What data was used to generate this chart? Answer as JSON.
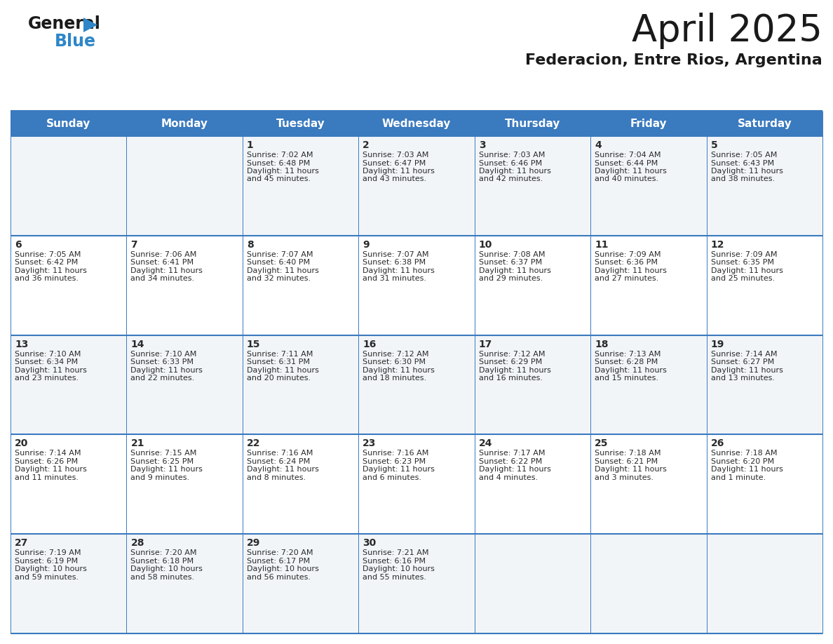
{
  "title": "April 2025",
  "subtitle": "Federacion, Entre Rios, Argentina",
  "header_bg_color": "#3a7abf",
  "header_text_color": "#ffffff",
  "row_bg_odd": "#f2f5f8",
  "row_bg_even": "#ffffff",
  "grid_line_color": "#3a7abf",
  "separator_color": "#3a7abf",
  "day_names": [
    "Sunday",
    "Monday",
    "Tuesday",
    "Wednesday",
    "Thursday",
    "Friday",
    "Saturday"
  ],
  "days": [
    {
      "day": 1,
      "col": 2,
      "row": 0,
      "sunrise": "7:02 AM",
      "sunset": "6:48 PM",
      "daylight": "11 hours and 45 minutes."
    },
    {
      "day": 2,
      "col": 3,
      "row": 0,
      "sunrise": "7:03 AM",
      "sunset": "6:47 PM",
      "daylight": "11 hours and 43 minutes."
    },
    {
      "day": 3,
      "col": 4,
      "row": 0,
      "sunrise": "7:03 AM",
      "sunset": "6:46 PM",
      "daylight": "11 hours and 42 minutes."
    },
    {
      "day": 4,
      "col": 5,
      "row": 0,
      "sunrise": "7:04 AM",
      "sunset": "6:44 PM",
      "daylight": "11 hours and 40 minutes."
    },
    {
      "day": 5,
      "col": 6,
      "row": 0,
      "sunrise": "7:05 AM",
      "sunset": "6:43 PM",
      "daylight": "11 hours and 38 minutes."
    },
    {
      "day": 6,
      "col": 0,
      "row": 1,
      "sunrise": "7:05 AM",
      "sunset": "6:42 PM",
      "daylight": "11 hours and 36 minutes."
    },
    {
      "day": 7,
      "col": 1,
      "row": 1,
      "sunrise": "7:06 AM",
      "sunset": "6:41 PM",
      "daylight": "11 hours and 34 minutes."
    },
    {
      "day": 8,
      "col": 2,
      "row": 1,
      "sunrise": "7:07 AM",
      "sunset": "6:40 PM",
      "daylight": "11 hours and 32 minutes."
    },
    {
      "day": 9,
      "col": 3,
      "row": 1,
      "sunrise": "7:07 AM",
      "sunset": "6:38 PM",
      "daylight": "11 hours and 31 minutes."
    },
    {
      "day": 10,
      "col": 4,
      "row": 1,
      "sunrise": "7:08 AM",
      "sunset": "6:37 PM",
      "daylight": "11 hours and 29 minutes."
    },
    {
      "day": 11,
      "col": 5,
      "row": 1,
      "sunrise": "7:09 AM",
      "sunset": "6:36 PM",
      "daylight": "11 hours and 27 minutes."
    },
    {
      "day": 12,
      "col": 6,
      "row": 1,
      "sunrise": "7:09 AM",
      "sunset": "6:35 PM",
      "daylight": "11 hours and 25 minutes."
    },
    {
      "day": 13,
      "col": 0,
      "row": 2,
      "sunrise": "7:10 AM",
      "sunset": "6:34 PM",
      "daylight": "11 hours and 23 minutes."
    },
    {
      "day": 14,
      "col": 1,
      "row": 2,
      "sunrise": "7:10 AM",
      "sunset": "6:33 PM",
      "daylight": "11 hours and 22 minutes."
    },
    {
      "day": 15,
      "col": 2,
      "row": 2,
      "sunrise": "7:11 AM",
      "sunset": "6:31 PM",
      "daylight": "11 hours and 20 minutes."
    },
    {
      "day": 16,
      "col": 3,
      "row": 2,
      "sunrise": "7:12 AM",
      "sunset": "6:30 PM",
      "daylight": "11 hours and 18 minutes."
    },
    {
      "day": 17,
      "col": 4,
      "row": 2,
      "sunrise": "7:12 AM",
      "sunset": "6:29 PM",
      "daylight": "11 hours and 16 minutes."
    },
    {
      "day": 18,
      "col": 5,
      "row": 2,
      "sunrise": "7:13 AM",
      "sunset": "6:28 PM",
      "daylight": "11 hours and 15 minutes."
    },
    {
      "day": 19,
      "col": 6,
      "row": 2,
      "sunrise": "7:14 AM",
      "sunset": "6:27 PM",
      "daylight": "11 hours and 13 minutes."
    },
    {
      "day": 20,
      "col": 0,
      "row": 3,
      "sunrise": "7:14 AM",
      "sunset": "6:26 PM",
      "daylight": "11 hours and 11 minutes."
    },
    {
      "day": 21,
      "col": 1,
      "row": 3,
      "sunrise": "7:15 AM",
      "sunset": "6:25 PM",
      "daylight": "11 hours and 9 minutes."
    },
    {
      "day": 22,
      "col": 2,
      "row": 3,
      "sunrise": "7:16 AM",
      "sunset": "6:24 PM",
      "daylight": "11 hours and 8 minutes."
    },
    {
      "day": 23,
      "col": 3,
      "row": 3,
      "sunrise": "7:16 AM",
      "sunset": "6:23 PM",
      "daylight": "11 hours and 6 minutes."
    },
    {
      "day": 24,
      "col": 4,
      "row": 3,
      "sunrise": "7:17 AM",
      "sunset": "6:22 PM",
      "daylight": "11 hours and 4 minutes."
    },
    {
      "day": 25,
      "col": 5,
      "row": 3,
      "sunrise": "7:18 AM",
      "sunset": "6:21 PM",
      "daylight": "11 hours and 3 minutes."
    },
    {
      "day": 26,
      "col": 6,
      "row": 3,
      "sunrise": "7:18 AM",
      "sunset": "6:20 PM",
      "daylight": "11 hours and 1 minute."
    },
    {
      "day": 27,
      "col": 0,
      "row": 4,
      "sunrise": "7:19 AM",
      "sunset": "6:19 PM",
      "daylight": "10 hours and 59 minutes."
    },
    {
      "day": 28,
      "col": 1,
      "row": 4,
      "sunrise": "7:20 AM",
      "sunset": "6:18 PM",
      "daylight": "10 hours and 58 minutes."
    },
    {
      "day": 29,
      "col": 2,
      "row": 4,
      "sunrise": "7:20 AM",
      "sunset": "6:17 PM",
      "daylight": "10 hours and 56 minutes."
    },
    {
      "day": 30,
      "col": 3,
      "row": 4,
      "sunrise": "7:21 AM",
      "sunset": "6:16 PM",
      "daylight": "10 hours and 55 minutes."
    }
  ],
  "logo_text_color": "#1a1a1a",
  "logo_blue_color": "#2e86c8",
  "title_fontsize": 38,
  "subtitle_fontsize": 16,
  "header_fontsize": 11,
  "day_num_fontsize": 10,
  "info_fontsize": 8
}
